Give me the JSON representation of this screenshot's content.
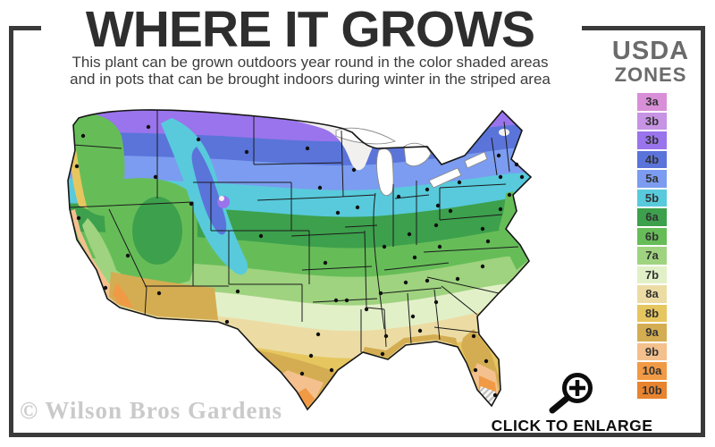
{
  "header": {
    "title": "WHERE IT GROWS",
    "subtitle_line1": "This plant can be grown outdoors year round in the color shaded areas",
    "subtitle_line2": "and in pots that can be brought indoors during winter in the striped area"
  },
  "legend": {
    "title_line1": "USDA",
    "title_line2": "ZONES",
    "zones": [
      {
        "label": "3a",
        "color": "#d98fd8"
      },
      {
        "label": "3b",
        "color": "#c793e4"
      },
      {
        "label": "3b",
        "color": "#9a74ec"
      },
      {
        "label": "4b",
        "color": "#5a74da"
      },
      {
        "label": "5a",
        "color": "#7b9cf0"
      },
      {
        "label": "5b",
        "color": "#58cadc"
      },
      {
        "label": "6a",
        "color": "#3da04c"
      },
      {
        "label": "6b",
        "color": "#66bd58"
      },
      {
        "label": "7a",
        "color": "#9fd37f"
      },
      {
        "label": "7b",
        "color": "#e2f0c8"
      },
      {
        "label": "8a",
        "color": "#ecdca4"
      },
      {
        "label": "8b",
        "color": "#e6c65f"
      },
      {
        "label": "9a",
        "color": "#d4ad52"
      },
      {
        "label": "9b",
        "color": "#f4c08d"
      },
      {
        "label": "10a",
        "color": "#f19a45"
      },
      {
        "label": "10b",
        "color": "#e8842f"
      }
    ]
  },
  "map": {
    "colors": {
      "cold_white": "#f1f0ee",
      "water": "#ffffff",
      "lake_edge": "#8a8a8a",
      "dot": "#101010",
      "state_border": "#1b1b1b",
      "outline": "#161616",
      "stripe": "#bdbdbd"
    },
    "city_dots": [
      [
        67,
        46
      ],
      [
        60,
        80
      ],
      [
        140,
        36
      ],
      [
        148,
        92
      ],
      [
        196,
        50
      ],
      [
        250,
        64
      ],
      [
        188,
        122
      ],
      [
        117,
        180
      ],
      [
        62,
        138
      ],
      [
        92,
        216
      ],
      [
        152,
        222
      ],
      [
        266,
        158
      ],
      [
        240,
        220
      ],
      [
        228,
        254
      ],
      [
        318,
        60
      ],
      [
        332,
        104
      ],
      [
        352,
        132
      ],
      [
        338,
        188
      ],
      [
        350,
        230
      ],
      [
        362,
        230
      ],
      [
        330,
        268
      ],
      [
        322,
        292
      ],
      [
        345,
        308
      ],
      [
        312,
        312
      ],
      [
        370,
        84
      ],
      [
        374,
        126
      ],
      [
        404,
        170
      ],
      [
        420,
        114
      ],
      [
        452,
        106
      ],
      [
        432,
        156
      ],
      [
        462,
        146
      ],
      [
        464,
        124
      ],
      [
        438,
        182
      ],
      [
        428,
        210
      ],
      [
        452,
        208
      ],
      [
        400,
        222
      ],
      [
        384,
        240
      ],
      [
        406,
        270
      ],
      [
        402,
        290
      ],
      [
        436,
        248
      ],
      [
        444,
        264
      ],
      [
        462,
        232
      ],
      [
        504,
        270
      ],
      [
        518,
        298
      ],
      [
        506,
        308
      ],
      [
        528,
        336
      ],
      [
        486,
        206
      ],
      [
        514,
        192
      ],
      [
        520,
        164
      ],
      [
        514,
        150
      ],
      [
        534,
        128
      ],
      [
        544,
        112
      ],
      [
        558,
        92
      ],
      [
        534,
        92
      ],
      [
        532,
        68
      ],
      [
        552,
        78
      ],
      [
        488,
        98
      ],
      [
        478,
        130
      ],
      [
        466,
        170
      ]
    ]
  },
  "footer": {
    "watermark": "© Wilson Bros Gardens",
    "enlarge_label": "CLICK TO ENLARGE"
  }
}
